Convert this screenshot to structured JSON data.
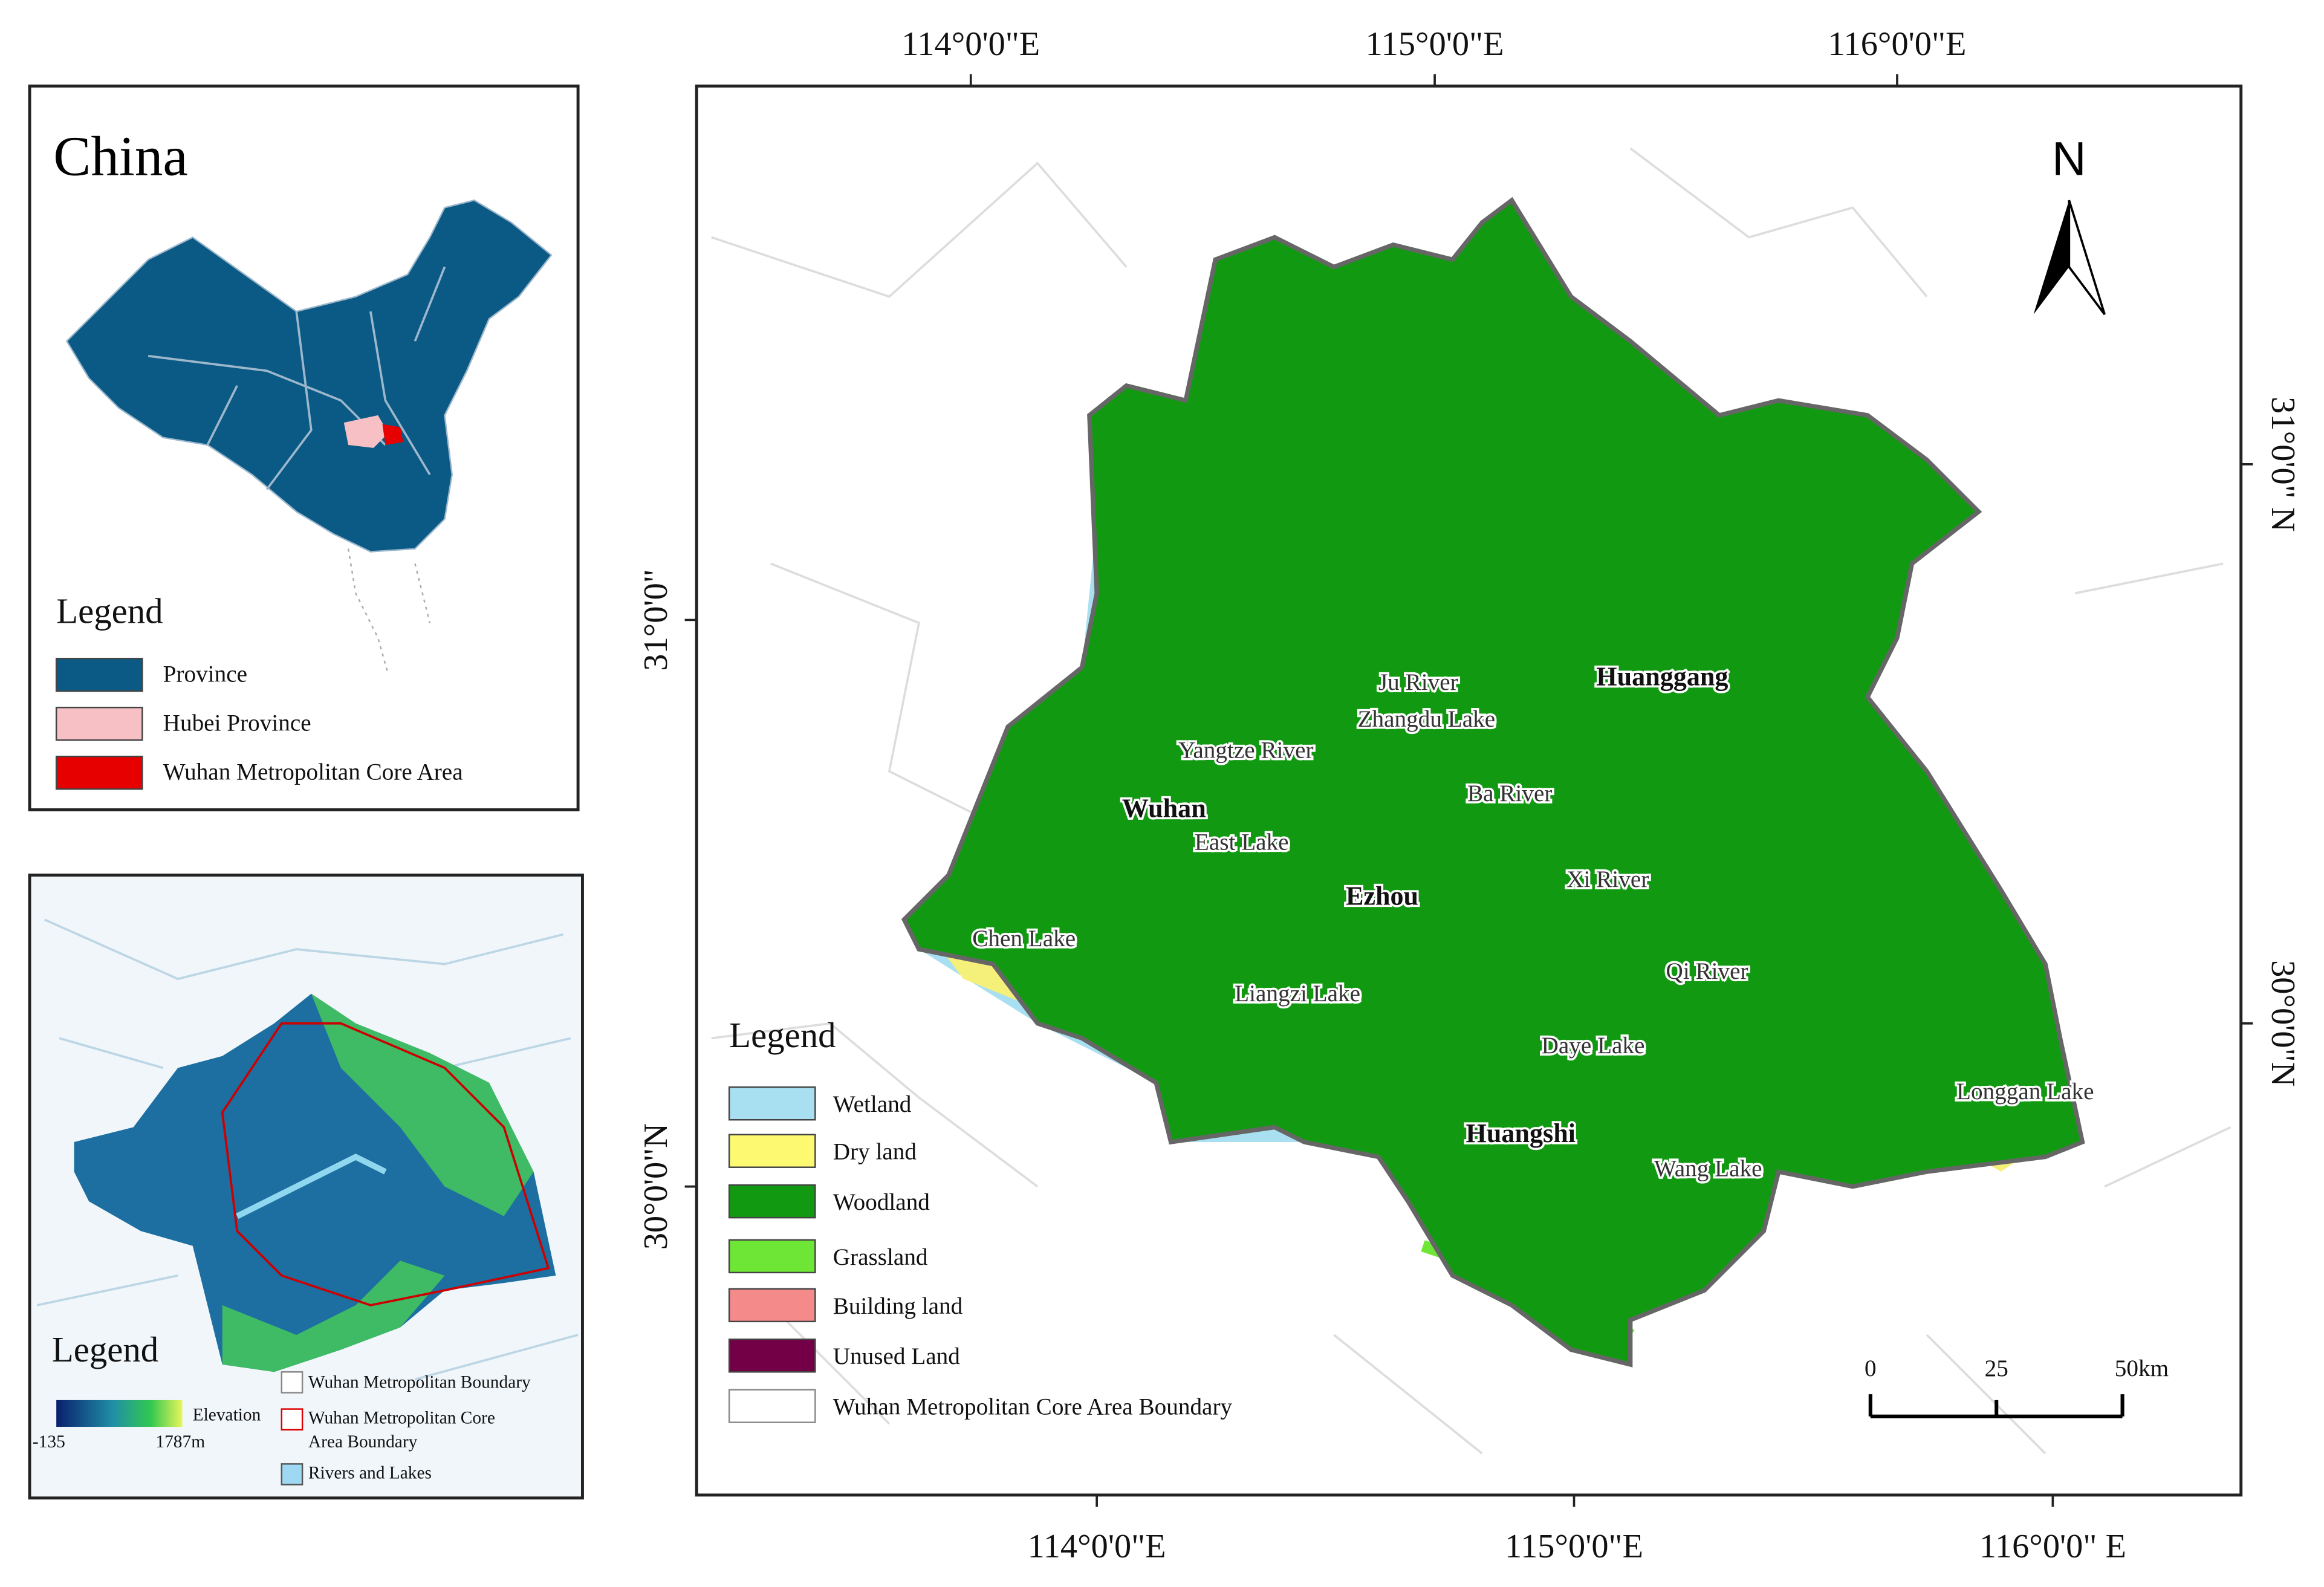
{
  "inset_china": {
    "title": "China",
    "legend_title": "Legend",
    "legend": [
      "Province",
      "Hubei Province",
      "Wuhan Metropolitan Core Area"
    ]
  },
  "inset_elevation": {
    "legend_title": "Legend",
    "elevation_label": "Elevation",
    "elevation_min": "-135",
    "elevation_max": "1787m",
    "legend": [
      [
        "Wuhan Metropolitan Boundary"
      ],
      [
        "Wuhan Metropolitan Core",
        "Area Boundary"
      ],
      [
        "Rivers and Lakes"
      ]
    ]
  },
  "main_map": {
    "top_ticks": [
      "114°0'0\"E",
      "115°0'0\"E",
      "116°0'0\"E"
    ],
    "bottom_ticks": [
      "114°0'0\"E",
      "115°0'0\"E",
      "116°0'0\" E"
    ],
    "left_ticks": [
      "31°0'0\"",
      "30°0'0\"N"
    ],
    "right_ticks": [
      "31°0'0\" N",
      "30°0'0\"N"
    ],
    "north": "N",
    "cities": [
      "Wuhan",
      "Ezhou",
      "Huanggang",
      "Huangshi"
    ],
    "places": [
      "Ju River",
      "Zhangdu Lake",
      "Yangtze River",
      "Ba River",
      "East Lake",
      "Xi River",
      "Chen Lake",
      "Qi River",
      "Liangzi Lake",
      "Daye Lake",
      "Longgan Lake",
      "Wang Lake"
    ],
    "legend_title": "Legend",
    "legend": [
      "Wetland",
      "Dry land",
      "Woodland",
      "Grassland",
      "Building land",
      "Unused Land",
      "Wuhan Metropolitan Core Area Boundary"
    ],
    "scale_labels": [
      "0",
      "25",
      "50km"
    ]
  }
}
